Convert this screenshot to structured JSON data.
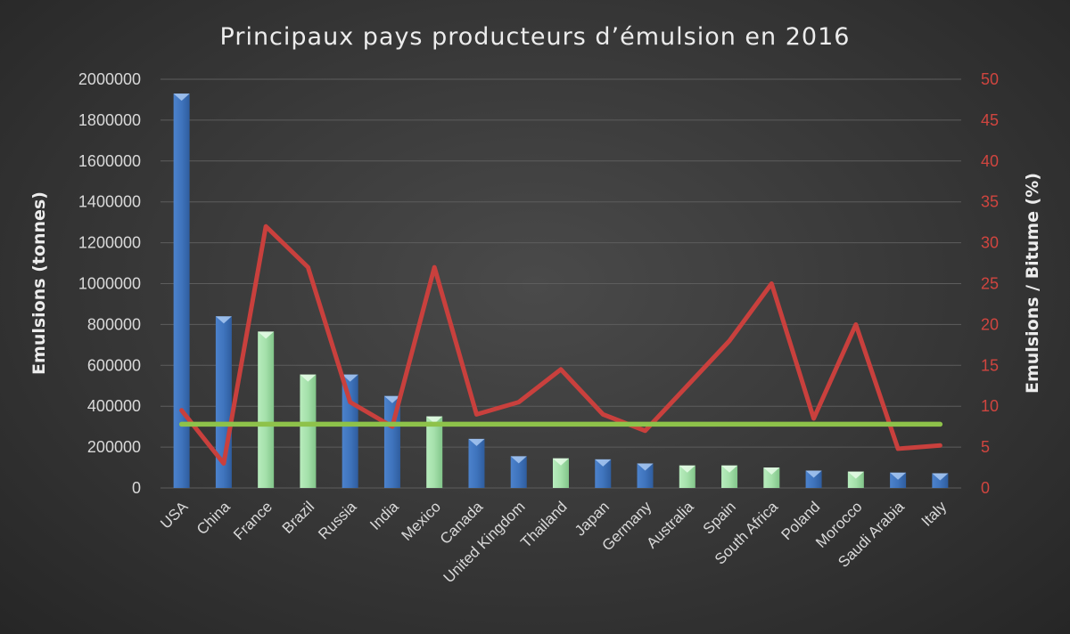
{
  "chart_data": {
    "type": "bar",
    "title": "Principaux pays producteurs d’émulsion en 2016",
    "ylabel": "Emulsions (tonnes)",
    "y2label": "Emulsions / Bitume (%)",
    "ylim": [
      0,
      2000000
    ],
    "y2lim": [
      0,
      50
    ],
    "yticks": [
      "0",
      "200000",
      "400000",
      "600000",
      "800000",
      "1000000",
      "1200000",
      "1400000",
      "1600000",
      "1800000",
      "2000000"
    ],
    "y2ticks": [
      "0",
      "5",
      "10",
      "15",
      "20",
      "25",
      "30",
      "35",
      "40",
      "45",
      "50"
    ],
    "grid": true,
    "categories": [
      "USA",
      "China",
      "France",
      "Brazil",
      "Russia",
      "India",
      "Mexico",
      "Canada",
      "United Kingdom",
      "Thailand",
      "Japan",
      "Germany",
      "Australia",
      "Spain",
      "South Africa",
      "Poland",
      "Morocco",
      "Saudi Arabia",
      "Italy"
    ],
    "series": [
      {
        "kind": "bar",
        "axis": "left",
        "values": [
          1930000,
          840000,
          765000,
          555000,
          555000,
          450000,
          350000,
          240000,
          155000,
          145000,
          140000,
          120000,
          110000,
          110000,
          100000,
          85000,
          80000,
          75000,
          72000
        ],
        "colors": [
          "#3b6fb6",
          "#3b6fb6",
          "#9fdfa8",
          "#9fdfa8",
          "#3b6fb6",
          "#3b6fb6",
          "#9fdfa8",
          "#3b6fb6",
          "#3b6fb6",
          "#9fdfa8",
          "#3b6fb6",
          "#3b6fb6",
          "#9fdfa8",
          "#9fdfa8",
          "#9fdfa8",
          "#3b6fb6",
          "#9fdfa8",
          "#3b6fb6",
          "#3b6fb6"
        ]
      },
      {
        "kind": "line",
        "axis": "right",
        "color": "#c9403d",
        "values": [
          9.5,
          3,
          32,
          27,
          10.5,
          7.5,
          27,
          9,
          10.5,
          14.5,
          9,
          7,
          12.5,
          18,
          25,
          8.5,
          20,
          4.8,
          5.2
        ]
      },
      {
        "kind": "line",
        "axis": "right",
        "color": "#8ec24a",
        "values": [
          7.8,
          7.8,
          7.8,
          7.8,
          7.8,
          7.8,
          7.8,
          7.8,
          7.8,
          7.8,
          7.8,
          7.8,
          7.8,
          7.8,
          7.8,
          7.8,
          7.8,
          7.8,
          7.8
        ]
      }
    ]
  }
}
